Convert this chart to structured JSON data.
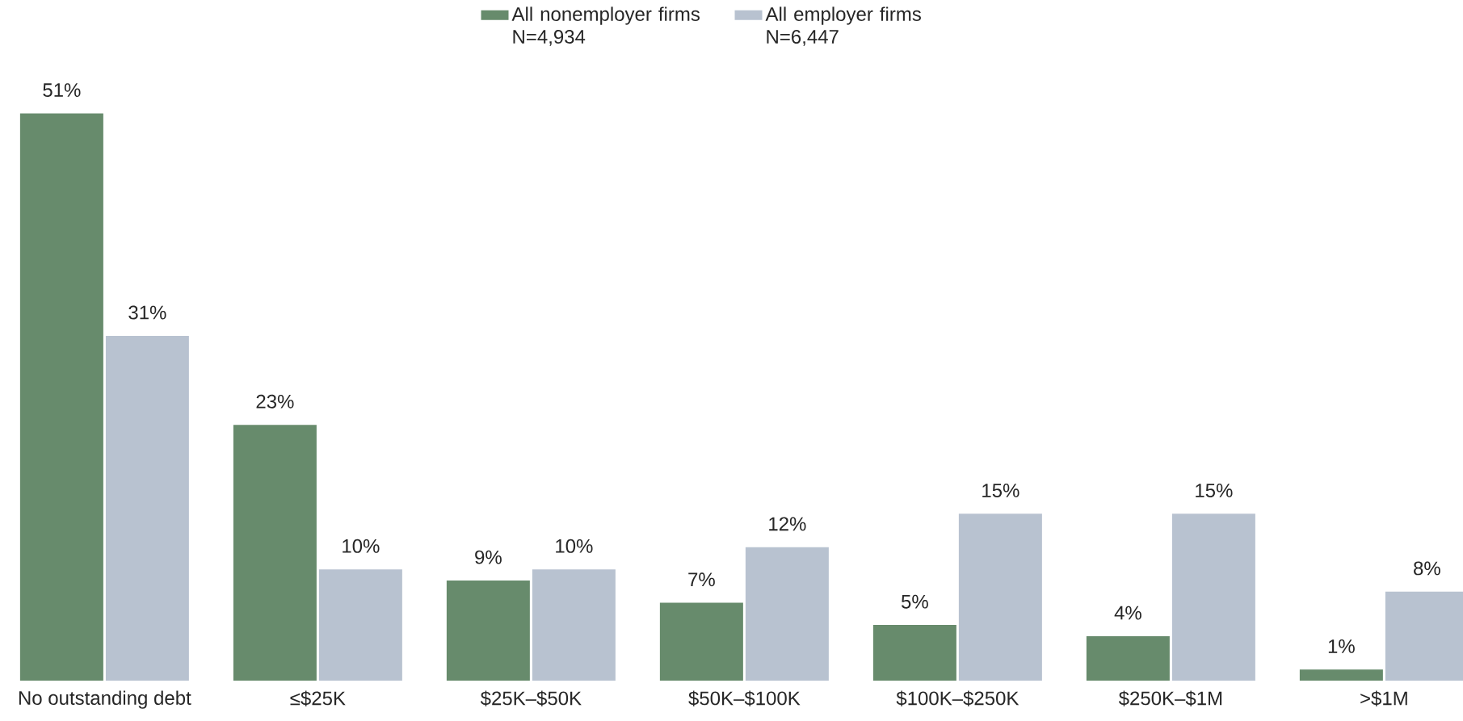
{
  "chart_data": {
    "type": "bar",
    "categories": [
      "No outstanding debt",
      "≤$25K",
      "$25K–$50K",
      "$50K–$100K",
      "$100K–$250K",
      "$250K–$1M",
      ">$1M"
    ],
    "series": [
      {
        "name": "All nonemployer firms N=4,934",
        "color": "#678b6c",
        "values": [
          51,
          23,
          9,
          7,
          5,
          4,
          1
        ],
        "value_labels": [
          "51%",
          "23%",
          "9%",
          "7%",
          "5%",
          "4%",
          "1%"
        ]
      },
      {
        "name": "All employer firms N=6,447",
        "color": "#b8c2d0",
        "values": [
          31,
          10,
          10,
          12,
          15,
          15,
          8
        ],
        "value_labels": [
          "31%",
          "10%",
          "10%",
          "12%",
          "15%",
          "15%",
          "8%"
        ]
      }
    ],
    "legend": "top"
  }
}
